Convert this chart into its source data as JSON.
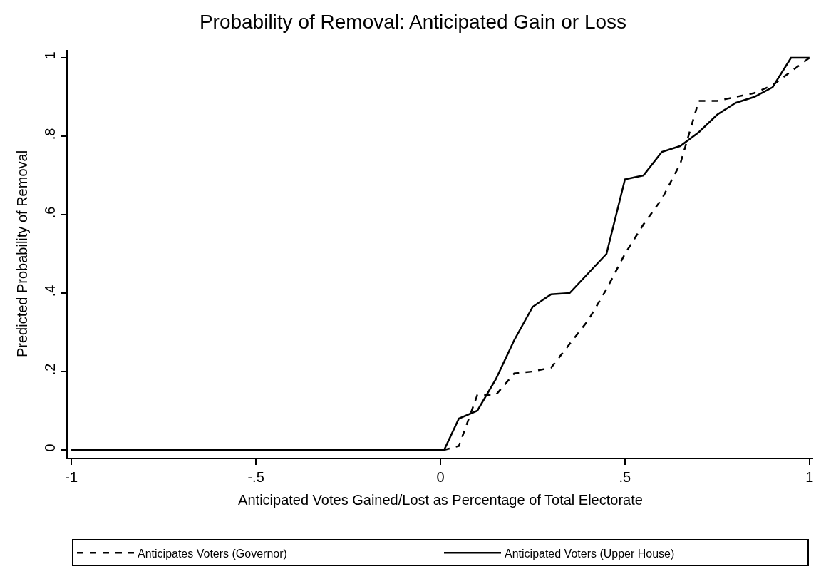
{
  "chart_data": {
    "type": "line",
    "title": "Probability of Removal: Anticipated Gain or Loss",
    "xlabel": "Anticipated Votes Gained/Lost as Percentage of Total Electorate",
    "ylabel": "Predicted Probability of Removal",
    "x": [
      -1,
      0.01,
      0.05,
      0.1,
      0.15,
      0.2,
      0.25,
      0.3,
      0.35,
      0.4,
      0.45,
      0.5,
      0.55,
      0.6,
      0.65,
      0.7,
      0.75,
      0.8,
      0.85,
      0.9,
      0.95,
      1
    ],
    "series": [
      {
        "name": "Anticipates Voters (Governor)",
        "color": "#000000",
        "line_style": "dashed",
        "values": [
          0,
          0,
          0.01,
          0.14,
          0.14,
          0.195,
          0.2,
          0.21,
          0.27,
          0.33,
          0.41,
          0.5,
          0.575,
          0.64,
          0.73,
          0.89,
          0.89,
          0.9,
          0.91,
          0.93,
          0.965,
          1.0
        ]
      },
      {
        "name": "Anticipated Voters (Upper House)",
        "color": "#000000",
        "line_style": "solid",
        "values": [
          0,
          0,
          0.08,
          0.1,
          0.18,
          0.28,
          0.365,
          0.397,
          0.4,
          0.45,
          0.5,
          0.69,
          0.7,
          0.76,
          0.775,
          0.81,
          0.855,
          0.885,
          0.9,
          0.925,
          1.0,
          1.0
        ]
      }
    ],
    "xlim": [
      -1.01,
      1.01
    ],
    "ylim": [
      -0.02,
      1.02
    ],
    "xticks": [
      {
        "value": -1,
        "label": "-1"
      },
      {
        "value": -0.5,
        "label": "-.5"
      },
      0,
      {
        "value": 0.5,
        "label": ".5"
      },
      1
    ],
    "yticks": [
      0,
      {
        "value": 0.2,
        "label": ".2"
      },
      {
        "value": 0.4,
        "label": ".4"
      },
      {
        "value": 0.6,
        "label": ".6"
      },
      {
        "value": 0.8,
        "label": ".8"
      },
      1
    ],
    "legend": "bottom",
    "marker": "none"
  }
}
